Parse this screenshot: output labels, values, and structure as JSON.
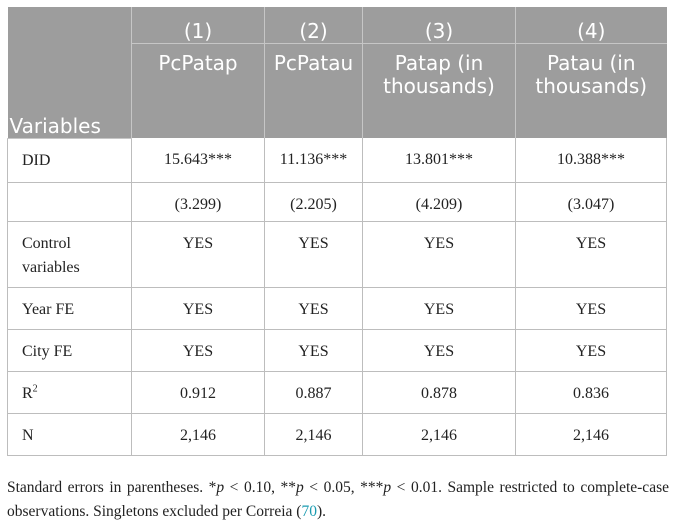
{
  "table": {
    "header": {
      "variables_label": "Variables",
      "columns": [
        {
          "number": "(1)",
          "name": "PcPatap"
        },
        {
          "number": "(2)",
          "name": "PcPatau"
        },
        {
          "number": "(3)",
          "name": "Patap (in thousands)"
        },
        {
          "number": "(4)",
          "name": "Patau (in thousands)"
        }
      ]
    },
    "rows": [
      {
        "label": "DID",
        "values": [
          "15.643***",
          "11.136***",
          "13.801***",
          "10.388***"
        ]
      },
      {
        "label": "",
        "values": [
          "(3.299)",
          "(2.205)",
          "(4.209)",
          "(3.047)"
        ]
      },
      {
        "label": "Control variables",
        "values": [
          "YES",
          "YES",
          "YES",
          "YES"
        ]
      },
      {
        "label": "Year FE",
        "values": [
          "YES",
          "YES",
          "YES",
          "YES"
        ]
      },
      {
        "label": "City FE",
        "values": [
          "YES",
          "YES",
          "YES",
          "YES"
        ]
      },
      {
        "label": "R",
        "label_sup": "2",
        "values": [
          "0.912",
          "0.887",
          "0.878",
          "0.836"
        ]
      },
      {
        "label": "N",
        "values": [
          "2,146",
          "2,146",
          "2,146",
          "2,146"
        ]
      }
    ]
  },
  "note": {
    "part1": "Standard errors in parentheses. *",
    "p": "p",
    "t1": " < 0.10, **",
    "t2": " < 0.05, ***",
    "t3": " < 0.01. Sample restricted to complete-case observations. Singletons excluded per Correia (",
    "citation": "70",
    "end": ")."
  }
}
